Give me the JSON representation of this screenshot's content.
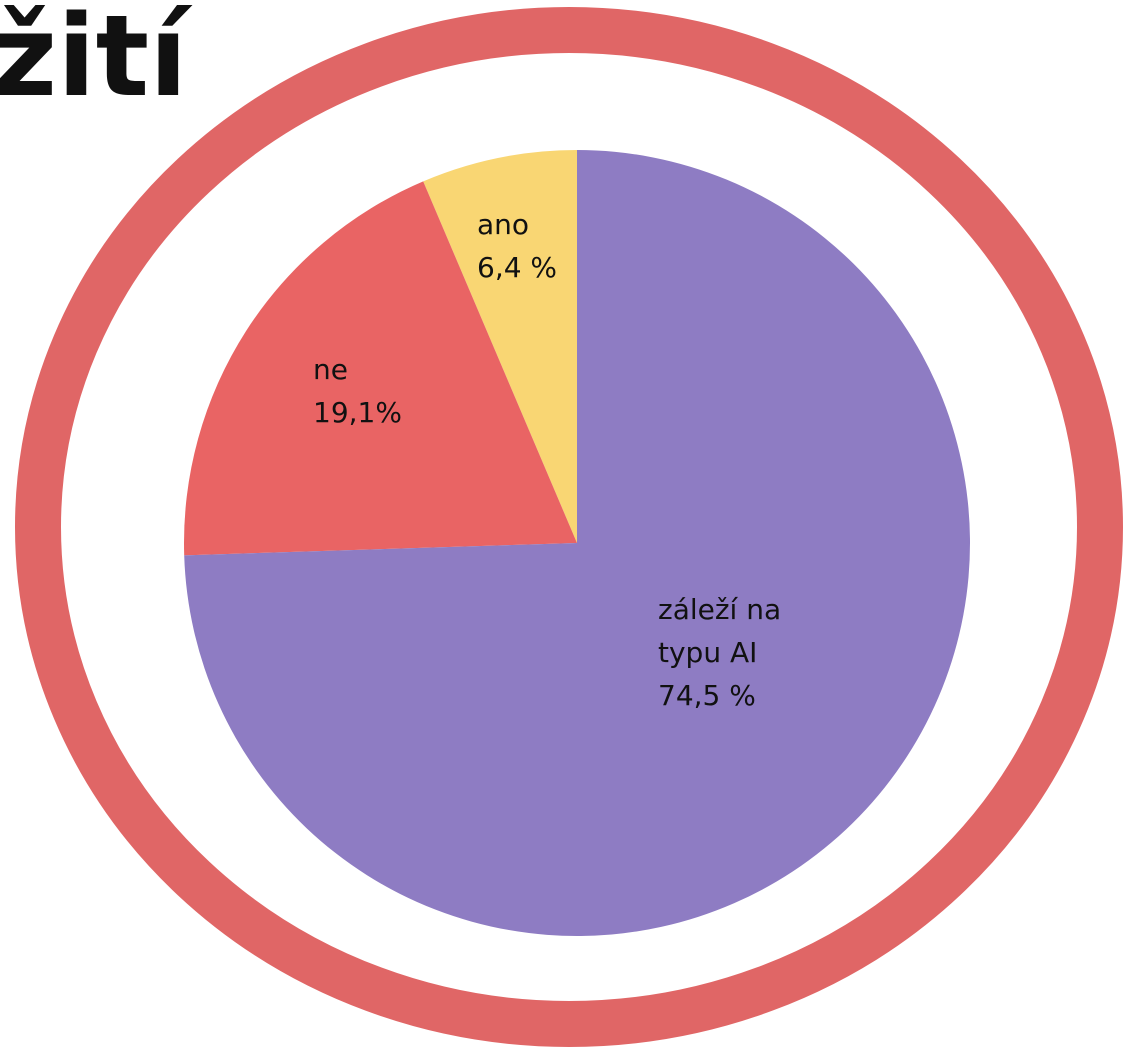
{
  "chart_data": {
    "type": "pie",
    "title": "žití",
    "categories": [
      "ano",
      "ne",
      "záleží na typu AI"
    ],
    "values": [
      6.4,
      19.1,
      74.5
    ],
    "value_labels": [
      "6,4 %",
      "19,1%",
      "74,5 %"
    ],
    "colors": [
      "#f9d673",
      "#e96464",
      "#8e7cc3"
    ]
  }
}
